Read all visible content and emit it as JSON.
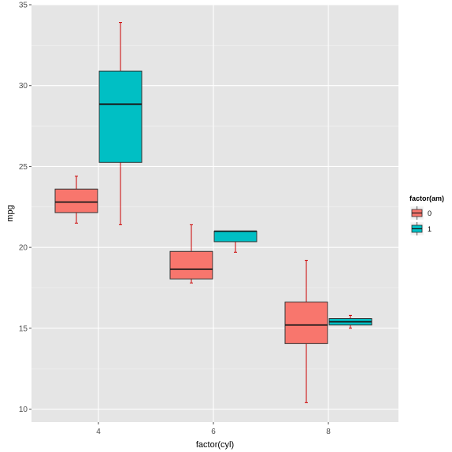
{
  "chart_data": {
    "type": "boxplot",
    "xlabel": "factor(cyl)",
    "ylabel": "mpg",
    "categories": [
      "4",
      "6",
      "8"
    ],
    "ylim": [
      9.2,
      35
    ],
    "yticks": [
      10,
      15,
      20,
      25,
      30,
      35
    ],
    "grid": true,
    "legend": {
      "title": "factor(am)",
      "placement": "right",
      "entries": [
        {
          "label": "0",
          "color": "#F8766D"
        },
        {
          "label": "1",
          "color": "#00BFC4"
        }
      ]
    },
    "whisker_color": "#cc0000",
    "series": [
      {
        "name": "0",
        "color": "#F8766D",
        "boxes": [
          {
            "category": "4",
            "min": 21.5,
            "q1": 22.15,
            "median": 22.8,
            "q3": 23.6,
            "max": 24.4
          },
          {
            "category": "6",
            "min": 17.8,
            "q1": 18.05,
            "median": 18.65,
            "q3": 19.75,
            "max": 21.4
          },
          {
            "category": "8",
            "min": 10.4,
            "q1": 14.05,
            "median": 15.2,
            "q3": 16.62,
            "max": 19.2
          }
        ]
      },
      {
        "name": "1",
        "color": "#00BFC4",
        "boxes": [
          {
            "category": "4",
            "min": 21.4,
            "q1": 25.25,
            "median": 28.85,
            "q3": 30.9,
            "max": 33.9
          },
          {
            "category": "6",
            "min": 19.7,
            "q1": 20.35,
            "median": 21.0,
            "q3": 21.0,
            "max": 21.0
          },
          {
            "category": "8",
            "min": 15.0,
            "q1": 15.2,
            "median": 15.4,
            "q3": 15.6,
            "max": 15.8
          }
        ]
      }
    ]
  }
}
